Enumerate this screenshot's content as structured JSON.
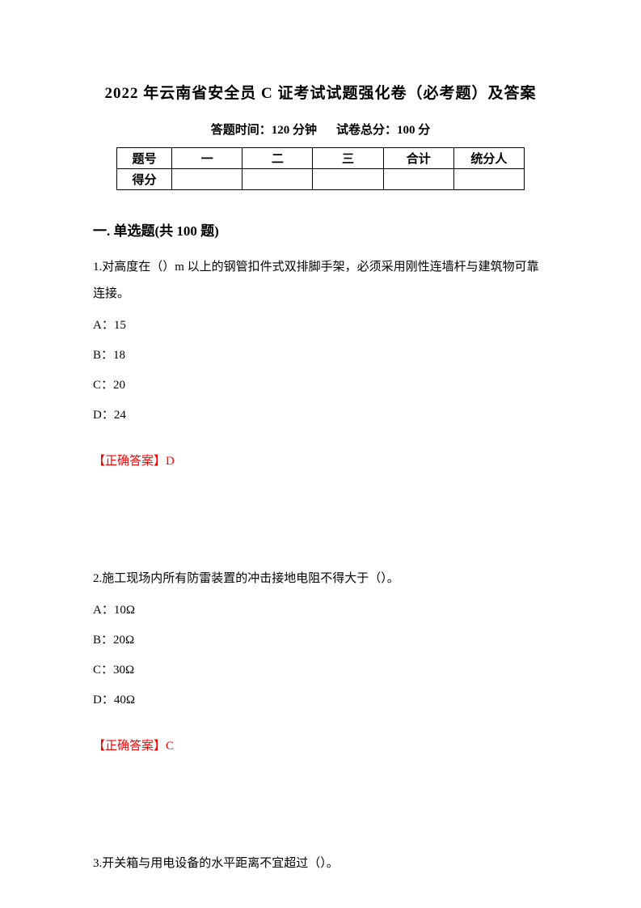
{
  "title": "2022 年云南省安全员 C 证考试试题强化卷（必考题）及答案",
  "subtitle_time_label": "答题时间：",
  "subtitle_time_value": "120 分钟",
  "subtitle_score_label": "试卷总分：",
  "subtitle_score_value": "100 分",
  "score_table": {
    "row1": {
      "label": "题号",
      "col1": "一",
      "col2": "二",
      "col3": "三",
      "col4": "合计",
      "col5": "统分人"
    },
    "row2": {
      "label": "得分",
      "col1": "",
      "col2": "",
      "col3": "",
      "col4": "",
      "col5": ""
    }
  },
  "section_heading": "一. 单选题(共 100 题)",
  "questions": [
    {
      "text": "1.对高度在（）m 以上的钢管扣件式双排脚手架，必须采用刚性连墙杆与建筑物可靠连接。",
      "options": [
        "A：15",
        "B：18",
        "C：20",
        "D：24"
      ],
      "answer": "【正确答案】D"
    },
    {
      "text": "2.施工现场内所有防雷装置的冲击接地电阻不得大于（）。",
      "options": [
        "A：10Ω",
        "B：20Ω",
        "C：30Ω",
        "D：40Ω"
      ],
      "answer": "【正确答案】C"
    },
    {
      "text": "3.开关箱与用电设备的水平距离不宜超过（）。",
      "options": [],
      "answer": ""
    }
  ]
}
